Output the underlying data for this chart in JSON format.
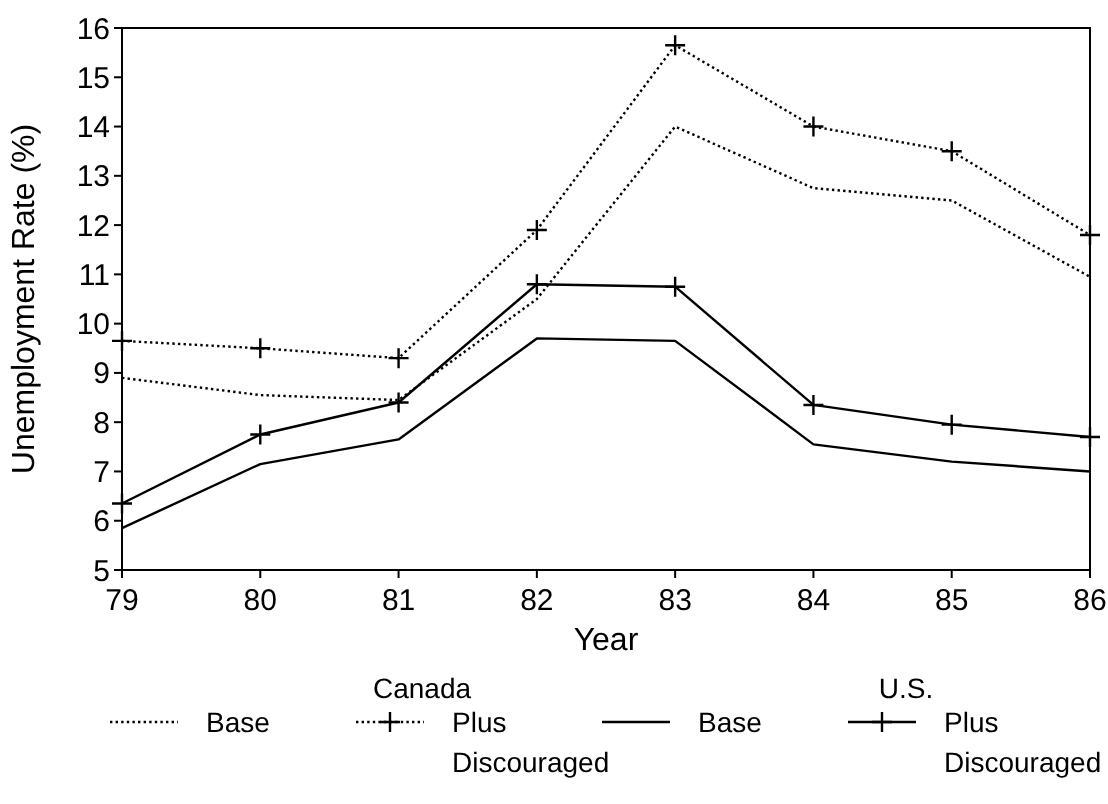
{
  "chart_data": {
    "type": "line",
    "xlabel": "Year",
    "ylabel": "Unemployment Rate (%)",
    "x": [
      79,
      80,
      81,
      82,
      83,
      84,
      85,
      86
    ],
    "xlim": [
      79,
      86
    ],
    "xticks": [
      79,
      80,
      81,
      82,
      83,
      84,
      85,
      86
    ],
    "ylim": [
      5,
      16
    ],
    "yticks": [
      5,
      6,
      7,
      8,
      9,
      10,
      11,
      12,
      13,
      14,
      15,
      16
    ],
    "legend": "bottom",
    "annotations": [
      "Canada",
      "U.S."
    ],
    "series": [
      {
        "name": "Base",
        "color": "#000000",
        "line_style": "dotted",
        "marker": "none",
        "values": [
          8.9,
          8.55,
          8.45,
          10.5,
          14.0,
          12.75,
          12.5,
          10.95
        ]
      },
      {
        "name": "Plus Discouraged",
        "color": "#000000",
        "line_style": "dotted",
        "marker": "cross",
        "values": [
          9.65,
          9.5,
          9.3,
          11.9,
          15.65,
          14.0,
          13.5,
          11.8
        ]
      },
      {
        "name": "Base",
        "color": "#000000",
        "line_style": "solid",
        "marker": "none",
        "values": [
          5.85,
          7.15,
          7.65,
          9.7,
          9.65,
          7.55,
          7.2,
          7.0
        ]
      },
      {
        "name": "Plus Discouraged",
        "color": "#000000",
        "line_style": "solid",
        "marker": "cross",
        "values": [
          6.35,
          7.75,
          8.4,
          10.8,
          10.75,
          8.35,
          7.95,
          7.7
        ]
      }
    ]
  }
}
